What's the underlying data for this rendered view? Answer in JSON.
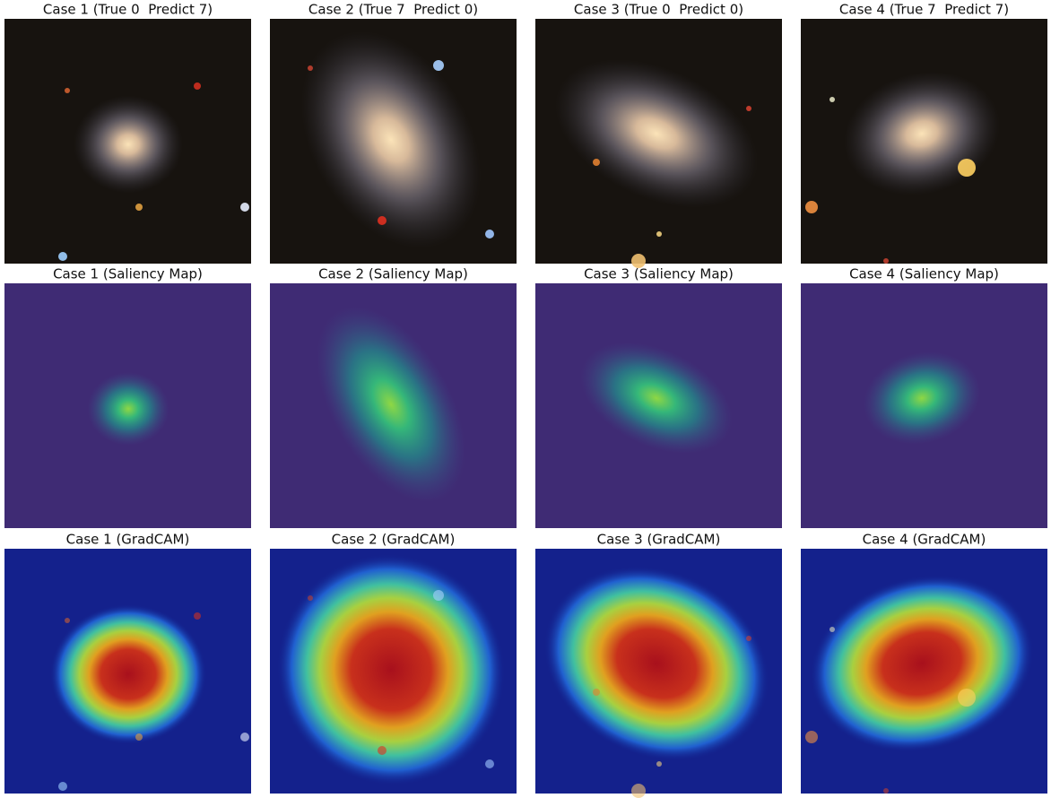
{
  "rows": [
    {
      "panels": [
        {
          "title": "Case 1 (True 0  Predict 7)"
        },
        {
          "title": "Case 2 (True 7  Predict 0)"
        },
        {
          "title": "Case 3 (True 0  Predict 0)"
        },
        {
          "title": "Case 4 (True 7  Predict 7)"
        }
      ]
    },
    {
      "panels": [
        {
          "title": "Case 1 (Saliency Map)"
        },
        {
          "title": "Case 2 (Saliency Map)"
        },
        {
          "title": "Case 3 (Saliency Map)"
        },
        {
          "title": "Case 4 (Saliency Map)"
        }
      ]
    },
    {
      "panels": [
        {
          "title": "Case 1 (GradCAM)"
        },
        {
          "title": "Case 2 (GradCAM)"
        },
        {
          "title": "Case 3 (GradCAM)"
        },
        {
          "title": "Case 4 (GradCAM)"
        }
      ]
    }
  ]
}
